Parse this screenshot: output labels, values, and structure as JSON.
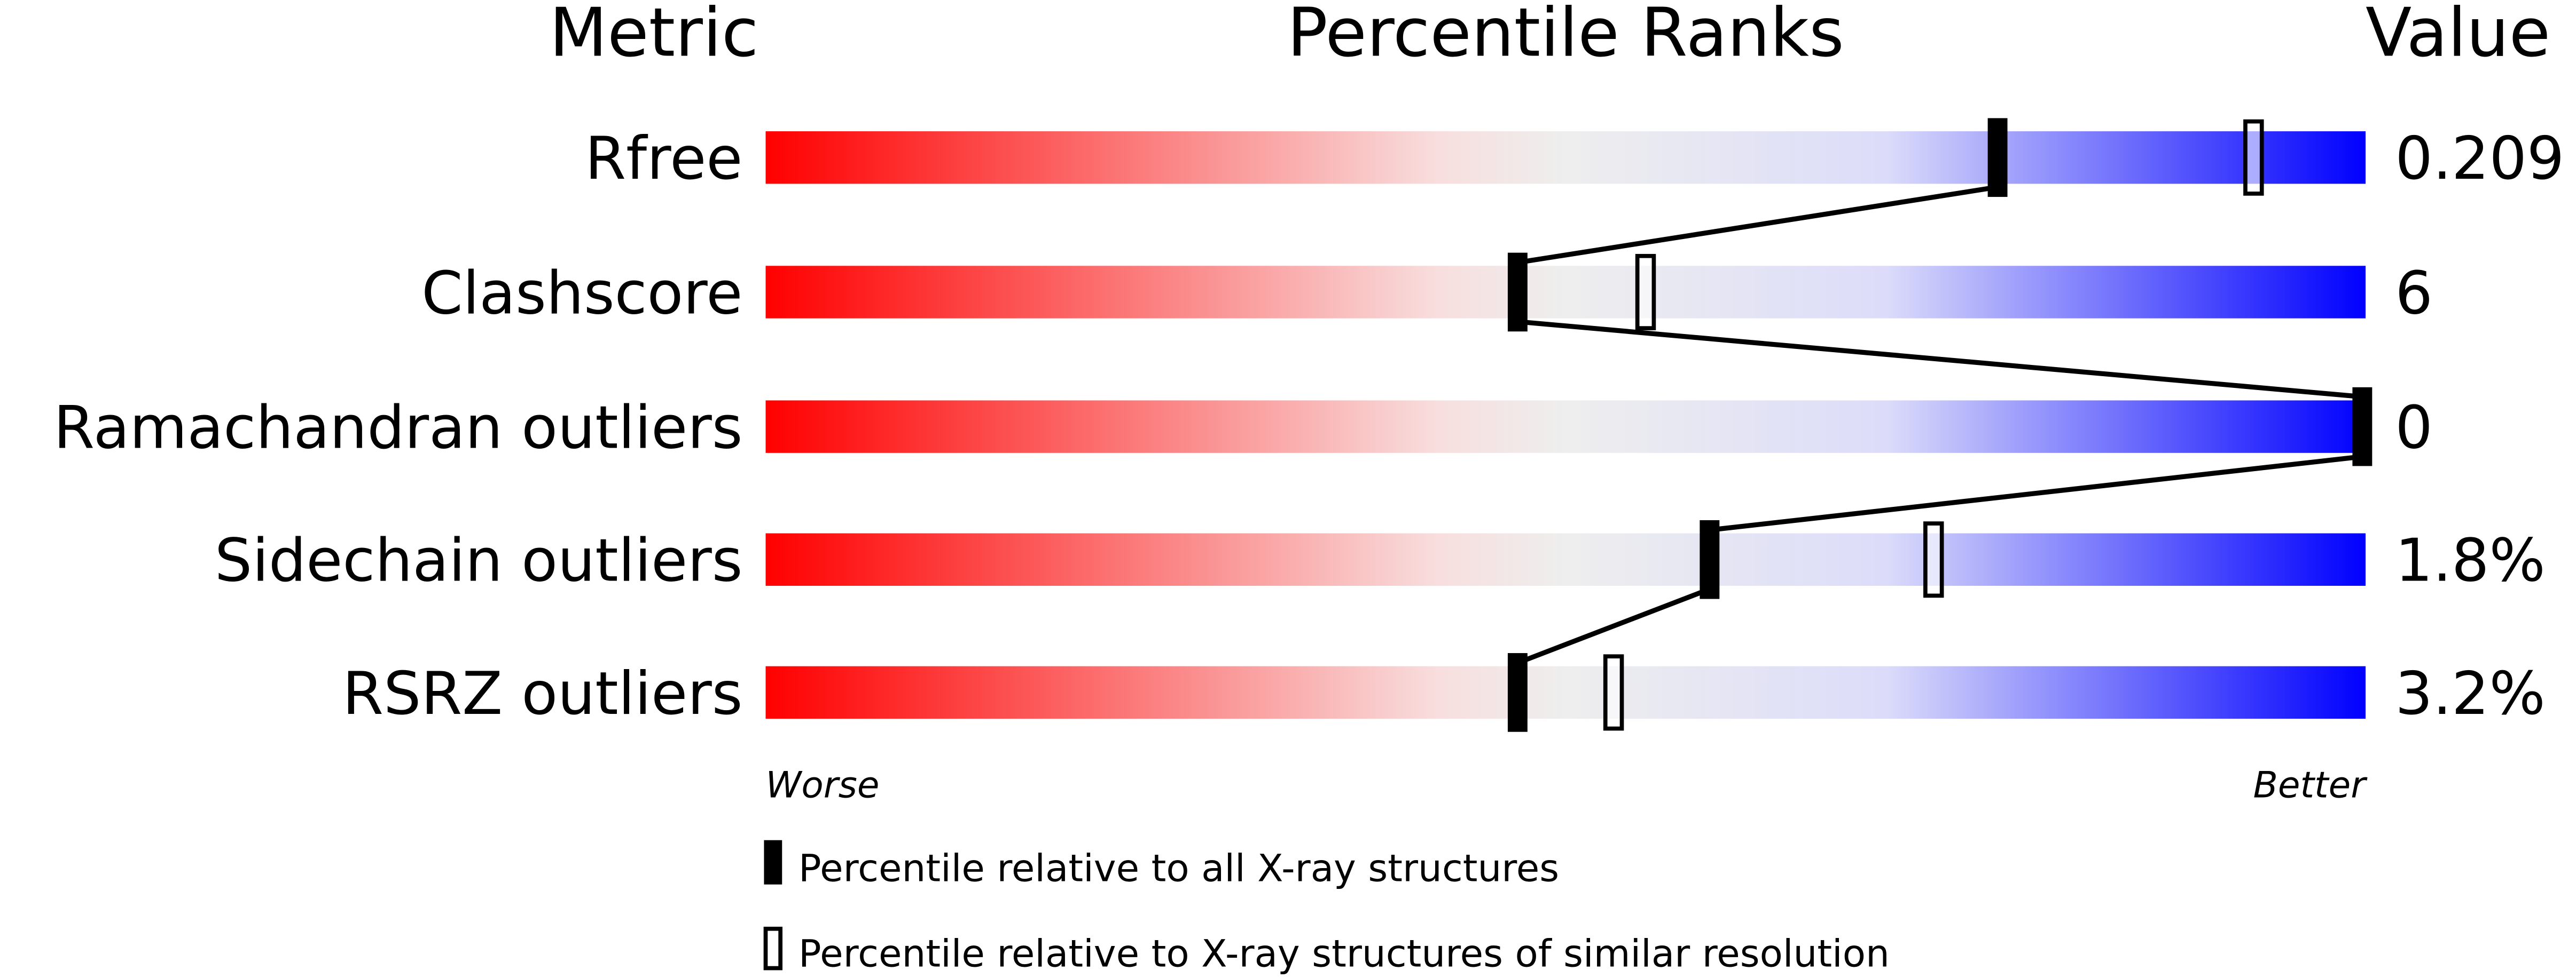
{
  "chart_data": {
    "type": "percentile-bar",
    "headers": {
      "metric": "Metric",
      "ranks": "Percentile Ranks",
      "value": "Value"
    },
    "xlim": [
      0,
      100
    ],
    "axis_labels": {
      "left": "Worse",
      "right": "Better"
    },
    "metrics": [
      {
        "name": "Rfree",
        "value": "0.209",
        "percentile_all": 77,
        "percentile_similar": 93
      },
      {
        "name": "Clashscore",
        "value": "6",
        "percentile_all": 47,
        "percentile_similar": 55
      },
      {
        "name": "Ramachandran outliers",
        "value": "0",
        "percentile_all": 100,
        "percentile_similar": null
      },
      {
        "name": "Sidechain outliers",
        "value": "1.8%",
        "percentile_all": 59,
        "percentile_similar": 73
      },
      {
        "name": "RSRZ outliers",
        "value": "3.2%",
        "percentile_all": 47,
        "percentile_similar": 53
      }
    ],
    "legend": {
      "all": "Percentile relative to all X-ray structures",
      "similar": "Percentile relative to X-ray structures of similar resolution"
    },
    "gradient_colors": [
      "#ff0000",
      "#f8dede",
      "#eeeeee",
      "#dcdcfa",
      "#0000ff"
    ]
  }
}
